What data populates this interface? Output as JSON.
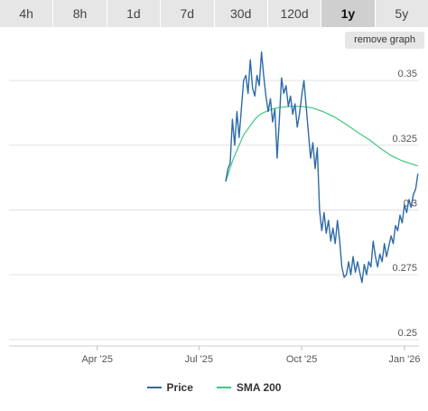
{
  "range_tabs": [
    {
      "label": "4h",
      "active": false
    },
    {
      "label": "8h",
      "active": false
    },
    {
      "label": "1d",
      "active": false
    },
    {
      "label": "7d",
      "active": false
    },
    {
      "label": "30d",
      "active": false
    },
    {
      "label": "120d",
      "active": false
    },
    {
      "label": "1y",
      "active": true
    },
    {
      "label": "5y",
      "active": false
    }
  ],
  "remove_graph_label": "remove graph",
  "colors": {
    "price": "#2e6aa8",
    "sma": "#3dc97a",
    "grid": "#e2e2e2",
    "axis_text": "#555555",
    "tab_bg": "#e6e6e6",
    "tab_active_bg": "#cfcfcf"
  },
  "chart_data": {
    "type": "line",
    "x_ticks": [
      "Apr '25",
      "Jul '25",
      "Oct '25",
      "Jan '26"
    ],
    "y_ticks": [
      "0.35",
      "0.325",
      "0.3",
      "0.275",
      "0.25"
    ],
    "xlim": [
      "2025-01-12",
      "2026-01-14"
    ],
    "ylim": [
      0.2475,
      0.3605
    ],
    "grid": "horizontal",
    "legend_position": "bottom",
    "series": [
      {
        "name": "Price",
        "color": "#2e6aa8",
        "points": [
          [
            "2025-07-25",
            0.311
          ],
          [
            "2025-07-27",
            0.316
          ],
          [
            "2025-07-29",
            0.318
          ],
          [
            "2025-07-31",
            0.335
          ],
          [
            "2025-08-02",
            0.325
          ],
          [
            "2025-08-04",
            0.338
          ],
          [
            "2025-08-06",
            0.328
          ],
          [
            "2025-08-08",
            0.339
          ],
          [
            "2025-08-10",
            0.35
          ],
          [
            "2025-08-12",
            0.352
          ],
          [
            "2025-08-14",
            0.345
          ],
          [
            "2025-08-16",
            0.358
          ],
          [
            "2025-08-18",
            0.347
          ],
          [
            "2025-08-20",
            0.344
          ],
          [
            "2025-08-22",
            0.352
          ],
          [
            "2025-08-24",
            0.348
          ],
          [
            "2025-08-26",
            0.361
          ],
          [
            "2025-08-28",
            0.352
          ],
          [
            "2025-08-30",
            0.344
          ],
          [
            "2025-09-01",
            0.338
          ],
          [
            "2025-09-03",
            0.343
          ],
          [
            "2025-09-05",
            0.334
          ],
          [
            "2025-09-07",
            0.339
          ],
          [
            "2025-09-09",
            0.32
          ],
          [
            "2025-09-11",
            0.335
          ],
          [
            "2025-09-13",
            0.351
          ],
          [
            "2025-09-15",
            0.345
          ],
          [
            "2025-09-17",
            0.348
          ],
          [
            "2025-09-19",
            0.34
          ],
          [
            "2025-09-21",
            0.344
          ],
          [
            "2025-09-23",
            0.337
          ],
          [
            "2025-09-25",
            0.341
          ],
          [
            "2025-09-27",
            0.332
          ],
          [
            "2025-09-29",
            0.337
          ],
          [
            "2025-10-01",
            0.344
          ],
          [
            "2025-10-03",
            0.35
          ],
          [
            "2025-10-05",
            0.34
          ],
          [
            "2025-10-07",
            0.33
          ],
          [
            "2025-10-09",
            0.32
          ],
          [
            "2025-10-11",
            0.326
          ],
          [
            "2025-10-13",
            0.316
          ],
          [
            "2025-10-15",
            0.324
          ],
          [
            "2025-10-17",
            0.3
          ],
          [
            "2025-10-19",
            0.292
          ],
          [
            "2025-10-21",
            0.299
          ],
          [
            "2025-10-23",
            0.291
          ],
          [
            "2025-10-25",
            0.296
          ],
          [
            "2025-10-27",
            0.288
          ],
          [
            "2025-10-29",
            0.293
          ],
          [
            "2025-10-31",
            0.287
          ],
          [
            "2025-11-02",
            0.296
          ],
          [
            "2025-11-04",
            0.288
          ],
          [
            "2025-11-06",
            0.278
          ],
          [
            "2025-11-08",
            0.274
          ],
          [
            "2025-11-10",
            0.275
          ],
          [
            "2025-11-12",
            0.28
          ],
          [
            "2025-11-14",
            0.275
          ],
          [
            "2025-11-16",
            0.282
          ],
          [
            "2025-11-18",
            0.276
          ],
          [
            "2025-11-20",
            0.28
          ],
          [
            "2025-11-22",
            0.276
          ],
          [
            "2025-11-24",
            0.272
          ],
          [
            "2025-11-26",
            0.279
          ],
          [
            "2025-11-28",
            0.275
          ],
          [
            "2025-11-30",
            0.28
          ],
          [
            "2025-12-02",
            0.278
          ],
          [
            "2025-12-04",
            0.288
          ],
          [
            "2025-12-06",
            0.282
          ],
          [
            "2025-12-08",
            0.278
          ],
          [
            "2025-12-10",
            0.283
          ],
          [
            "2025-12-12",
            0.28
          ],
          [
            "2025-12-14",
            0.287
          ],
          [
            "2025-12-16",
            0.282
          ],
          [
            "2025-12-18",
            0.286
          ],
          [
            "2025-12-20",
            0.29
          ],
          [
            "2025-12-22",
            0.287
          ],
          [
            "2025-12-24",
            0.294
          ],
          [
            "2025-12-26",
            0.292
          ],
          [
            "2025-12-28",
            0.298
          ],
          [
            "2025-12-30",
            0.295
          ],
          [
            "2026-01-01",
            0.302
          ],
          [
            "2026-01-03",
            0.299
          ],
          [
            "2026-01-05",
            0.304
          ],
          [
            "2026-01-07",
            0.301
          ],
          [
            "2026-01-09",
            0.306
          ],
          [
            "2026-01-11",
            0.308
          ],
          [
            "2026-01-13",
            0.314
          ]
        ]
      },
      {
        "name": "SMA 200",
        "color": "#3dc97a",
        "points": [
          [
            "2025-07-25",
            0.311
          ],
          [
            "2025-07-28",
            0.315
          ],
          [
            "2025-08-01",
            0.32
          ],
          [
            "2025-08-05",
            0.324
          ],
          [
            "2025-08-10",
            0.329
          ],
          [
            "2025-08-15",
            0.332
          ],
          [
            "2025-08-20",
            0.335
          ],
          [
            "2025-08-25",
            0.337
          ],
          [
            "2025-08-30",
            0.338
          ],
          [
            "2025-09-05",
            0.339
          ],
          [
            "2025-09-10",
            0.3395
          ],
          [
            "2025-09-20",
            0.34
          ],
          [
            "2025-09-30",
            0.34
          ],
          [
            "2025-10-10",
            0.3395
          ],
          [
            "2025-10-20",
            0.338
          ],
          [
            "2025-10-30",
            0.336
          ],
          [
            "2025-11-10",
            0.333
          ],
          [
            "2025-11-20",
            0.33
          ],
          [
            "2025-12-01",
            0.327
          ],
          [
            "2025-12-10",
            0.324
          ],
          [
            "2025-12-20",
            0.321
          ],
          [
            "2025-12-30",
            0.319
          ],
          [
            "2026-01-06",
            0.318
          ],
          [
            "2026-01-13",
            0.317
          ]
        ]
      }
    ]
  }
}
